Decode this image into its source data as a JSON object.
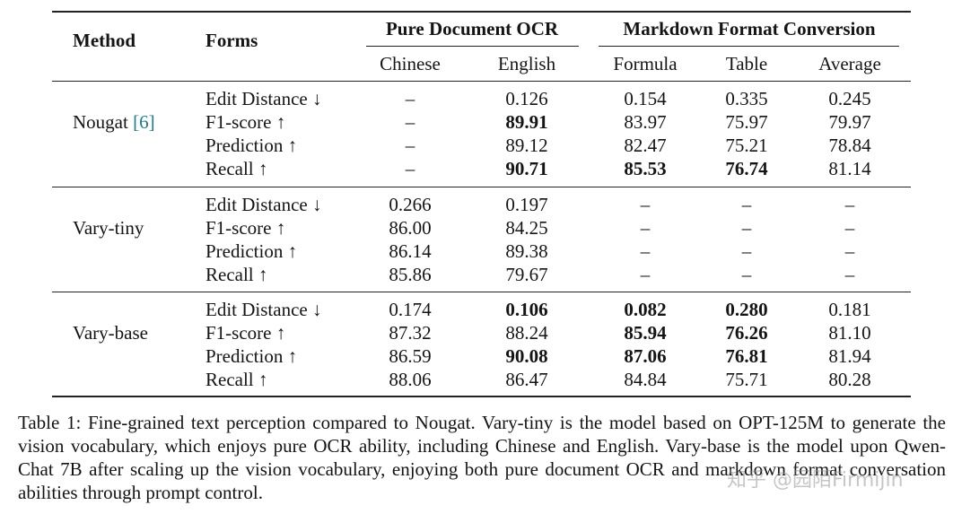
{
  "table": {
    "headers": {
      "method": "Method",
      "forms": "Forms",
      "group_ocr": "Pure Document OCR",
      "group_md": "Markdown Format Conversion",
      "sub": [
        "Chinese",
        "English",
        "Formula",
        "Table",
        "Average"
      ]
    },
    "groups": [
      {
        "method": "Nougat",
        "ref": "[6]",
        "rows": [
          {
            "form": "Edit Distance ↓",
            "values": [
              "–",
              "0.126",
              "0.154",
              "0.335",
              "0.245"
            ],
            "bold": [
              false,
              false,
              false,
              false,
              false
            ]
          },
          {
            "form": "F1-score ↑",
            "values": [
              "–",
              "89.91",
              "83.97",
              "75.97",
              "79.97"
            ],
            "bold": [
              false,
              true,
              false,
              false,
              false
            ]
          },
          {
            "form": "Prediction ↑",
            "values": [
              "–",
              "89.12",
              "82.47",
              "75.21",
              "78.84"
            ],
            "bold": [
              false,
              false,
              false,
              false,
              false
            ]
          },
          {
            "form": "Recall ↑",
            "values": [
              "–",
              "90.71",
              "85.53",
              "76.74",
              "81.14"
            ],
            "bold": [
              false,
              true,
              true,
              true,
              false
            ]
          }
        ]
      },
      {
        "method": "Vary-tiny",
        "ref": "",
        "rows": [
          {
            "form": "Edit Distance ↓",
            "values": [
              "0.266",
              "0.197",
              "–",
              "–",
              "–"
            ],
            "bold": [
              false,
              false,
              false,
              false,
              false
            ]
          },
          {
            "form": "F1-score ↑",
            "values": [
              "86.00",
              "84.25",
              "–",
              "–",
              "–"
            ],
            "bold": [
              false,
              false,
              false,
              false,
              false
            ]
          },
          {
            "form": "Prediction ↑",
            "values": [
              "86.14",
              "89.38",
              "–",
              "–",
              "–"
            ],
            "bold": [
              false,
              false,
              false,
              false,
              false
            ]
          },
          {
            "form": "Recall ↑",
            "values": [
              "85.86",
              "79.67",
              "–",
              "–",
              "–"
            ],
            "bold": [
              false,
              false,
              false,
              false,
              false
            ]
          }
        ]
      },
      {
        "method": "Vary-base",
        "ref": "",
        "rows": [
          {
            "form": "Edit Distance ↓",
            "values": [
              "0.174",
              "0.106",
              "0.082",
              "0.280",
              "0.181"
            ],
            "bold": [
              false,
              true,
              true,
              true,
              false
            ]
          },
          {
            "form": "F1-score ↑",
            "values": [
              "87.32",
              "88.24",
              "85.94",
              "76.26",
              "81.10"
            ],
            "bold": [
              false,
              false,
              true,
              true,
              false
            ]
          },
          {
            "form": "Prediction ↑",
            "values": [
              "86.59",
              "90.08",
              "87.06",
              "76.81",
              "81.94"
            ],
            "bold": [
              false,
              true,
              true,
              true,
              false
            ]
          },
          {
            "form": "Recall ↑",
            "values": [
              "88.06",
              "86.47",
              "84.84",
              "75.71",
              "80.28"
            ],
            "bold": [
              false,
              false,
              false,
              false,
              false
            ]
          }
        ]
      }
    ]
  },
  "caption": "Table 1: Fine-grained text perception compared to Nougat. Vary-tiny is the model based on OPT-125M to generate the vision vocabulary, which enjoys pure OCR ability, including Chinese and English. Vary-base is the model upon Qwen-Chat 7B after scaling up the vision vocabulary, enjoying both pure document OCR and markdown format conversation abilities through prompt control.",
  "watermark": "知乎 @园陌Firmijin"
}
